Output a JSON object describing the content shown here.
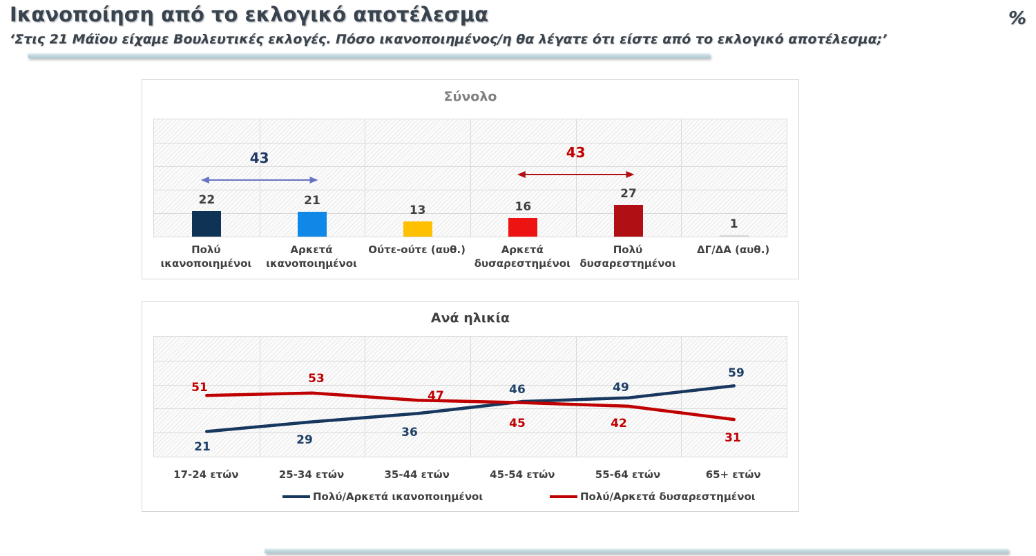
{
  "header": {
    "title": "Ικανοποίηση από το εκλογικό αποτέλεσμα",
    "subtitle": "‘Στις 21 Μάϊου είχαμε Βουλευτικές εκλογές. Πόσο ικανοποιημένος/η θα λέγατε ότι είστε από το εκλογικό αποτέλεσμα;’",
    "unit": "%"
  },
  "colors": {
    "title_text": "#39434e",
    "label_text": "#404040",
    "grid_line": "#d9d9d9",
    "divider_teal": "#adcad2",
    "navy": "#17375e",
    "bright_blue": "#0f88e8",
    "gold": "#fec000",
    "red": "#ee1313",
    "dark_red": "#b01013",
    "gray": "#d9d9d9"
  },
  "chart_data": [
    {
      "type": "bar",
      "title": "Σύνολο",
      "categories": [
        "Πολύ ικανοποιημένοι",
        "Αρκετά ικανοποιημένοι",
        "Ούτε-ούτε (αυθ.)",
        "Αρκετά δυσαρεστημένοι",
        "Πολύ δυσαρεστημένοι",
        "ΔΓ/ΔΑ (αυθ.)"
      ],
      "values": [
        22,
        21,
        13,
        16,
        27,
        1
      ],
      "bar_colors": [
        "#0e3355",
        "#0f88e8",
        "#fec000",
        "#ee1313",
        "#b01013",
        "#d9d9d9"
      ],
      "ylim": [
        0,
        100
      ],
      "grid_step": 20,
      "legend_position": "none",
      "annotations": [
        {
          "label": "43",
          "from_category": 0,
          "to_category": 1,
          "arrow_color": "#6674c2",
          "label_color": "#1f3864"
        },
        {
          "label": "43",
          "from_category": 3,
          "to_category": 4,
          "arrow_color": "#b01013",
          "label_color": "#c00000"
        }
      ]
    },
    {
      "type": "line",
      "title": "Ανά ηλικία",
      "categories": [
        "17-24 ετών",
        "25-34 ετών",
        "35-44 ετών",
        "45-54 ετών",
        "55-64 ετών",
        "65+ ετών"
      ],
      "series": [
        {
          "name": "Πολύ/Αρκετά ικανοποιημένοι",
          "color": "#17375e",
          "label_color": "#1f4068",
          "values": [
            21,
            29,
            36,
            46,
            49,
            59
          ]
        },
        {
          "name": "Πολύ/Αρκετά δυσαρεστημένοι",
          "color": "#c00000",
          "label_color": "#c00000",
          "values": [
            51,
            53,
            47,
            45,
            42,
            31
          ]
        }
      ],
      "ylim": [
        0,
        100
      ],
      "grid_step": 20,
      "legend_position": "bottom"
    }
  ]
}
